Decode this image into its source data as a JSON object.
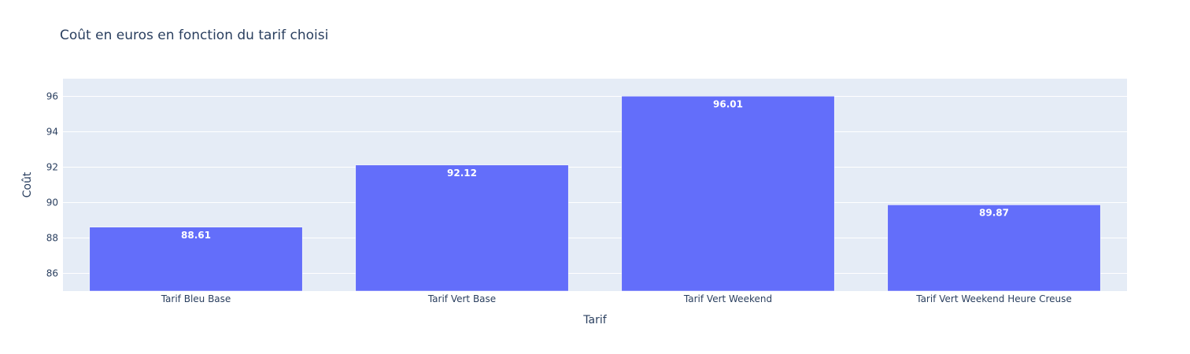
{
  "chart_data": {
    "type": "bar",
    "title": "Coût en euros en fonction du tarif choisi",
    "xlabel": "Tarif",
    "ylabel": "Coût",
    "categories": [
      "Tarif Bleu Base",
      "Tarif Vert Base",
      "Tarif Vert Weekend",
      "Tarif Vert Weekend Heure Creuse"
    ],
    "values": [
      88.61,
      92.12,
      96.01,
      89.87
    ],
    "data_labels": [
      "88.61",
      "92.12",
      "96.01",
      "89.87"
    ],
    "ylim": [
      85,
      97
    ],
    "yticks": [
      86,
      88,
      90,
      92,
      94,
      96
    ],
    "grid": true,
    "bar_color": "#636efa",
    "plot_background": "#e5ecf6",
    "text_color": "#2a3f5f"
  }
}
